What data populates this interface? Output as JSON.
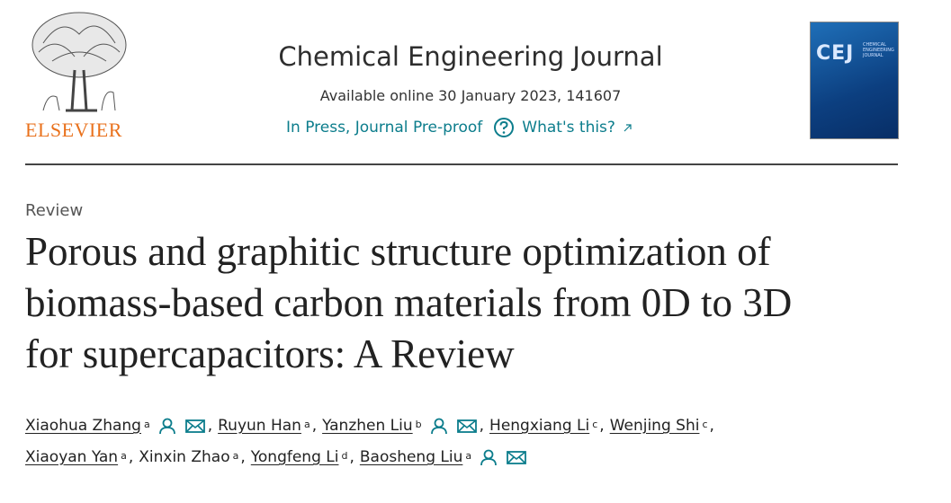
{
  "header": {
    "logo_text": "ELSEVIER",
    "journal": "Chemical Engineering Journal",
    "available": "Available online 30 January 2023, 141607",
    "status": "In Press, Journal Pre-proof",
    "help": "What's this?",
    "cover_title": "CEJ",
    "cover_subtitle": "CHEMICAL ENGINEERING JOURNAL"
  },
  "article": {
    "type": "Review",
    "title_lines": [
      "Porous and graphitic structure optimization of",
      "biomass-based carbon materials from 0D to 3D",
      "for supercapacitors: A Review"
    ],
    "separator": ",",
    "authors": [
      {
        "name": "Xiaohua Zhang",
        "sup": "a",
        "link": true,
        "profile": true,
        "email": true
      },
      {
        "name": "Ruyun Han",
        "sup": "a",
        "link": true,
        "profile": false,
        "email": false
      },
      {
        "name": "Yanzhen Liu",
        "sup": "b",
        "link": true,
        "profile": true,
        "email": true
      },
      {
        "name": "Hengxiang Li",
        "sup": "c",
        "link": true,
        "profile": false,
        "email": false
      },
      {
        "name": "Wenjing Shi",
        "sup": "c",
        "link": true,
        "profile": false,
        "email": false
      },
      {
        "name": "Xiaoyan Yan",
        "sup": "a",
        "link": true,
        "profile": false,
        "email": false
      },
      {
        "name": "Xinxin Zhao",
        "sup": "a",
        "link": false,
        "profile": false,
        "email": false
      },
      {
        "name": "Yongfeng Li",
        "sup": "d",
        "link": true,
        "profile": false,
        "email": false
      },
      {
        "name": "Baosheng Liu",
        "sup": "a",
        "link": true,
        "profile": true,
        "email": true
      }
    ]
  }
}
